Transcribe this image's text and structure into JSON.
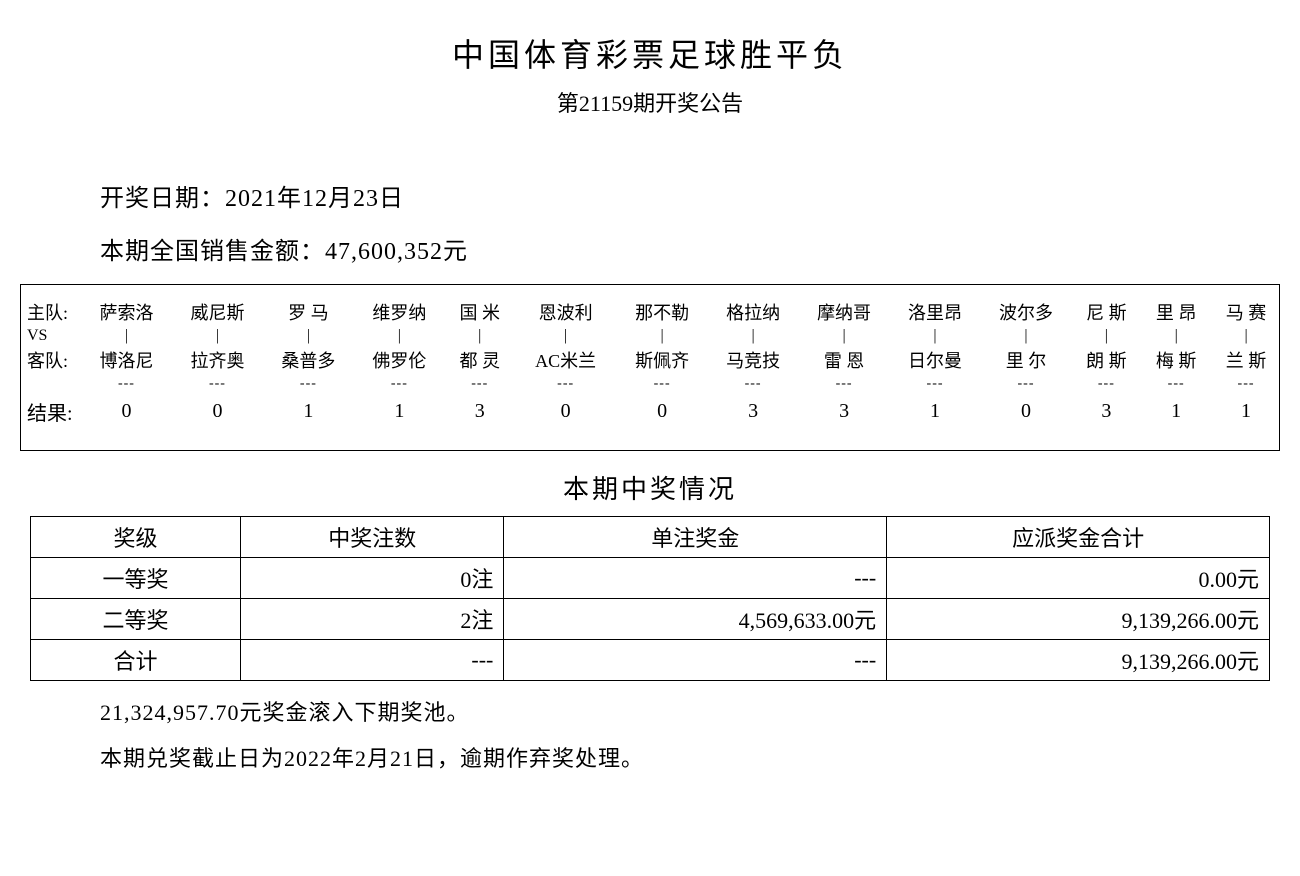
{
  "title": "中国体育彩票足球胜平负",
  "subtitle": "第21159期开奖公告",
  "drawDateLabel": "开奖日期：",
  "drawDate": "2021年12月23日",
  "salesLabel": "本期全国销售金额：",
  "salesAmount": "47,600,352元",
  "matchTable": {
    "rowLabels": {
      "home": "主队:",
      "vs": "VS",
      "away": "客队:",
      "result": "结果:"
    },
    "pipe": "|",
    "dash": "---",
    "home": [
      "萨索洛",
      "威尼斯",
      "罗 马",
      "维罗纳",
      "国 米",
      "恩波利",
      "那不勒",
      "格拉纳",
      "摩纳哥",
      "洛里昂",
      "波尔多",
      "尼 斯",
      "里 昂",
      "马 赛"
    ],
    "away": [
      "博洛尼",
      "拉齐奥",
      "桑普多",
      "佛罗伦",
      "都 灵",
      "AC米兰",
      "斯佩齐",
      "马竞技",
      "雷 恩",
      "日尔曼",
      "里 尔",
      "朗 斯",
      "梅 斯",
      "兰 斯"
    ],
    "result": [
      "0",
      "0",
      "1",
      "1",
      "3",
      "0",
      "0",
      "3",
      "3",
      "1",
      "0",
      "3",
      "1",
      "1"
    ]
  },
  "prizeSectionTitle": "本期中奖情况",
  "prizeTable": {
    "headers": [
      "奖级",
      "中奖注数",
      "单注奖金",
      "应派奖金合计"
    ],
    "rows": [
      {
        "level": "一等奖",
        "count": "0注",
        "per": "---",
        "total": "0.00元"
      },
      {
        "level": "二等奖",
        "count": "2注",
        "per": "4,569,633.00元",
        "total": "9,139,266.00元"
      },
      {
        "level": "合计",
        "count": "---",
        "per": "---",
        "total": "9,139,266.00元"
      }
    ]
  },
  "rollover": "21,324,957.70元奖金滚入下期奖池。",
  "deadline": "本期兑奖截止日为2022年2月21日，逾期作弃奖处理。",
  "style": {
    "background": "#ffffff",
    "text_color": "#000000",
    "border_color": "#000000",
    "font_family": "SimSun",
    "title_fontsize": 32,
    "subtitle_fontsize": 22,
    "body_fontsize": 22,
    "match_fontsize": 18
  }
}
